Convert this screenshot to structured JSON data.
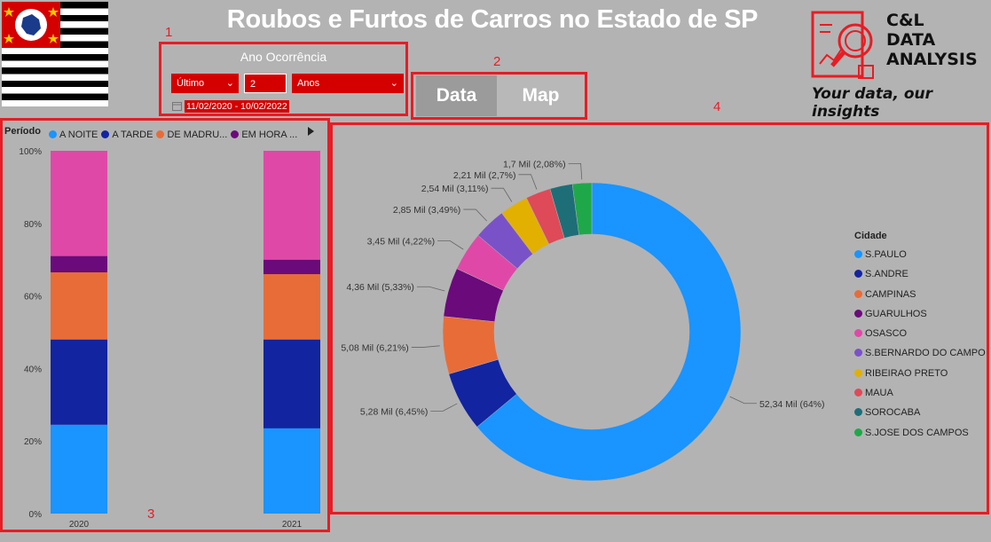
{
  "header": {
    "title": "Roubos e Furtos de Carros no Estado de SP"
  },
  "logo": {
    "line1": "C&L",
    "line2": "DATA",
    "line3": "ANALYSIS",
    "tagline": "Your data, our insights"
  },
  "annotations": [
    "1",
    "2",
    "3",
    "4"
  ],
  "filter": {
    "title": "Ano Ocorrência",
    "mode": "Último",
    "count": "2",
    "unit": "Anos",
    "date_range": "11/02/2020 - 10/02/2022"
  },
  "tabs": {
    "data_label": "Data",
    "map_label": "Map"
  },
  "colors": {
    "highlight": "#e81c24",
    "accent_red": "#d40000"
  },
  "bar_chart": {
    "legend_title": "Período",
    "legend": [
      {
        "label": "A NOITE",
        "color": "#1a94ff"
      },
      {
        "label": "A TARDE",
        "color": "#1224a0"
      },
      {
        "label": "DE MADRU...",
        "color": "#e86c38"
      },
      {
        "label": "EM HORA ...",
        "color": "#6b0a7a"
      }
    ],
    "y_ticks": [
      "100%",
      "80%",
      "60%",
      "40%",
      "20%",
      "0%"
    ]
  },
  "donut": {
    "legend_title": "Cidade"
  },
  "chart_data": [
    {
      "type": "bar",
      "stacked": "100%",
      "categories": [
        "2020",
        "2021"
      ],
      "series": [
        {
          "name": "A NOITE",
          "values": [
            24.5,
            23.5
          ],
          "color": "#1a94ff"
        },
        {
          "name": "A TARDE",
          "values": [
            23.5,
            24.5
          ],
          "color": "#1224a0"
        },
        {
          "name": "DE MADRU...",
          "values": [
            18.5,
            18.0
          ],
          "color": "#e86c38"
        },
        {
          "name": "EM HORA ...",
          "values": [
            4.5,
            4.0
          ],
          "color": "#6b0a7a"
        },
        {
          "name": "",
          "values": [
            29.0,
            30.0
          ],
          "color": "#e048a8"
        }
      ],
      "ylim": [
        0,
        100
      ],
      "legend_placement": "top"
    },
    {
      "type": "pie",
      "donut": true,
      "slices": [
        {
          "label": "S.PAULO",
          "value": 52.34,
          "text": "52,34 Mil (64%)",
          "color": "#1a94ff"
        },
        {
          "label": "S.ANDRE",
          "value": 5.28,
          "text": "5,28 Mil (6,45%)",
          "color": "#1224a0"
        },
        {
          "label": "CAMPINAS",
          "value": 5.08,
          "text": "5,08 Mil (6,21%)",
          "color": "#e86c38"
        },
        {
          "label": "GUARULHOS",
          "value": 4.36,
          "text": "4,36 Mil (5,33%)",
          "color": "#6b0a7a"
        },
        {
          "label": "OSASCO",
          "value": 3.45,
          "text": "3,45 Mil (4,22%)",
          "color": "#e048a8"
        },
        {
          "label": "S.BERNARDO DO CAMPO",
          "value": 2.85,
          "text": "2,85 Mil (3,49%)",
          "color": "#7a52c8"
        },
        {
          "label": "RIBEIRAO PRETO",
          "value": 2.54,
          "text": "2,54 Mil (3,11%)",
          "color": "#e2b000"
        },
        {
          "label": "MAUA",
          "value": 2.21,
          "text": "2,21 Mil (2,7%)",
          "color": "#de4a58"
        },
        {
          "label": "SOROCABA",
          "value": 2.0,
          "text": "",
          "color": "#1e6e78"
        },
        {
          "label": "S.JOSE DOS CAMPOS",
          "value": 1.7,
          "text": "1,7 Mil (2,08%)",
          "color": "#1fa84a"
        }
      ],
      "legend_placement": "right"
    }
  ]
}
